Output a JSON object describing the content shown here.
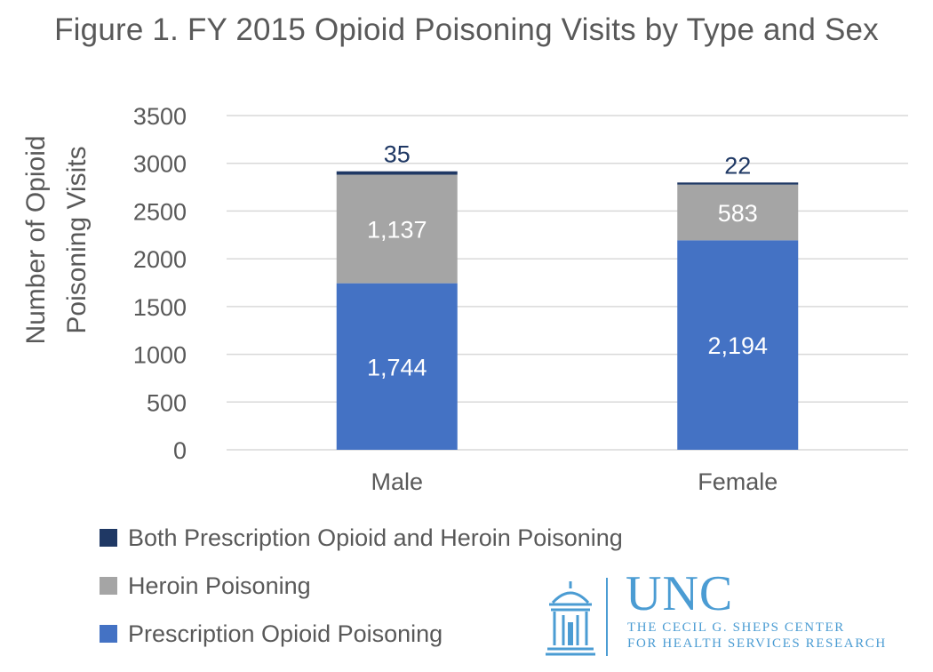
{
  "chart_data": {
    "type": "bar",
    "stacked": true,
    "title": "Figure 1. FY 2015 Opioid Poisoning Visits by Type and Sex",
    "ylabel_line1": "Number  of Opioid",
    "ylabel_line2": "Poisoning Visits",
    "ylim": [
      0,
      3500
    ],
    "yticks": [
      0,
      500,
      1000,
      1500,
      2000,
      2500,
      3000,
      3500
    ],
    "ytick_labels": [
      "0",
      "500",
      "1000",
      "1500",
      "2000",
      "2500",
      "3000",
      "3500"
    ],
    "grid": true,
    "categories": [
      "Male",
      "Female"
    ],
    "series": [
      {
        "name": "Prescription Opioid Poisoning",
        "color": "#4472c4",
        "label_color": "#ffffff",
        "values": [
          1744,
          2194
        ],
        "labels": [
          "1,744",
          "2,194"
        ]
      },
      {
        "name": "Heroin Poisoning",
        "color": "#a5a5a5",
        "label_color": "#ffffff",
        "values": [
          1137,
          583
        ],
        "labels": [
          "1,137",
          "583"
        ]
      },
      {
        "name": "Both Prescription Opioid and Heroin Poisoning",
        "color": "#1f3864",
        "label_color": "#1f3864",
        "values": [
          35,
          22
        ],
        "labels": [
          "35",
          "22"
        ]
      }
    ],
    "legend_position": "bottom-left"
  },
  "legend": [
    {
      "label": "Both Prescription Opioid and Heroin Poisoning",
      "color": "#1f3864"
    },
    {
      "label": "Heroin Poisoning",
      "color": "#a5a5a5"
    },
    {
      "label": "Prescription Opioid Poisoning",
      "color": "#4472c4"
    }
  ],
  "logo": {
    "name": "UNC",
    "line1": "THE CECIL G. SHEPS CENTER",
    "line2": "FOR HEALTH SERVICES RESEARCH",
    "color": "#4b9cd3"
  }
}
